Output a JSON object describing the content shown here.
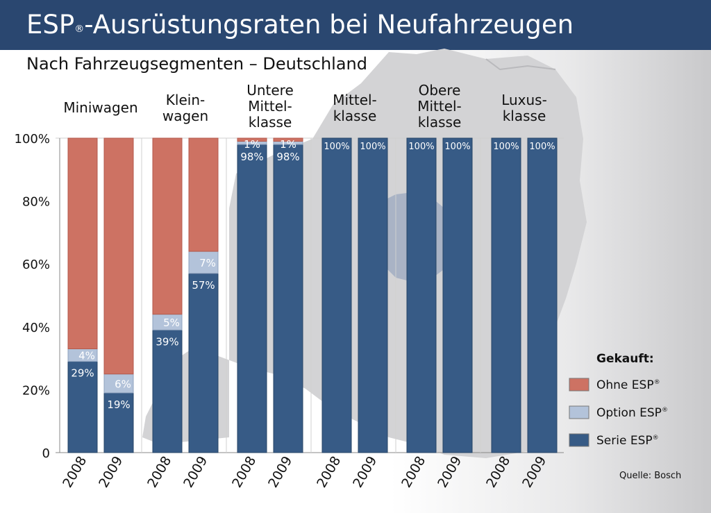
{
  "header": {
    "title_main": "ESP",
    "title_reg": "®",
    "title_rest": "-Ausrüstungsraten bei Neufahrzeugen",
    "subtitle": "Nach Fahrzeugsegmenten – Deutschland"
  },
  "source": "Quelle: Bosch",
  "colors": {
    "header_bg": "#2a4770",
    "ohne": "#cd7263",
    "option": "#b3c3da",
    "serie": "#375b86",
    "map": "#d2d2d4"
  },
  "chart_data": {
    "type": "bar",
    "stacked": true,
    "y_unit": "%",
    "ylim": [
      0,
      100
    ],
    "yticks": [
      "0",
      "20%",
      "40%",
      "60%",
      "80%",
      "100%"
    ],
    "groups": [
      {
        "label": [
          "Miniwagen"
        ],
        "years": [
          "2008",
          "2009"
        ]
      },
      {
        "label": [
          "Klein-",
          "wagen"
        ],
        "years": [
          "2008",
          "2009"
        ]
      },
      {
        "label": [
          "Untere",
          "Mittel-",
          "klasse"
        ],
        "years": [
          "2008",
          "2009"
        ]
      },
      {
        "label": [
          "Mittel-",
          "klasse"
        ],
        "years": [
          "2008",
          "2009"
        ]
      },
      {
        "label": [
          "Obere",
          "Mittel-",
          "klasse"
        ],
        "years": [
          "2008",
          "2009"
        ]
      },
      {
        "label": [
          "Luxus-",
          "klasse"
        ],
        "years": [
          "2008",
          "2009"
        ]
      }
    ],
    "series": [
      {
        "name": "Serie ESP",
        "key": "serie",
        "values": [
          29,
          19,
          39,
          57,
          98,
          98,
          100,
          100,
          100,
          100,
          100,
          100
        ],
        "labels": [
          "29%",
          "19%",
          "39%",
          "57%",
          "98%",
          "98%",
          "100%",
          "100%",
          "100%",
          "100%",
          "100%",
          "100%"
        ]
      },
      {
        "name": "Option ESP",
        "key": "option",
        "values": [
          4,
          6,
          5,
          7,
          1,
          1,
          0,
          0,
          0,
          0,
          0,
          0
        ],
        "labels": [
          "4%",
          "6%",
          "5%",
          "7%",
          "1%",
          "1%",
          "",
          "",
          "",
          "",
          "",
          ""
        ]
      },
      {
        "name": "Ohne ESP",
        "key": "ohne",
        "values": [
          67,
          75,
          56,
          36,
          1,
          1,
          0,
          0,
          0,
          0,
          0,
          0
        ],
        "labels": [
          "",
          "",
          "",
          "",
          "",
          "",
          "",
          "",
          "",
          "",
          "",
          ""
        ]
      }
    ],
    "legend": {
      "title": "Gekauft:",
      "placement": "bottom-right",
      "items": [
        {
          "key": "ohne",
          "label": "Ohne ESP",
          "reg": "®"
        },
        {
          "key": "option",
          "label": "Option ESP",
          "reg": "®"
        },
        {
          "key": "serie",
          "label": "Serie ESP",
          "reg": "®"
        }
      ]
    }
  }
}
